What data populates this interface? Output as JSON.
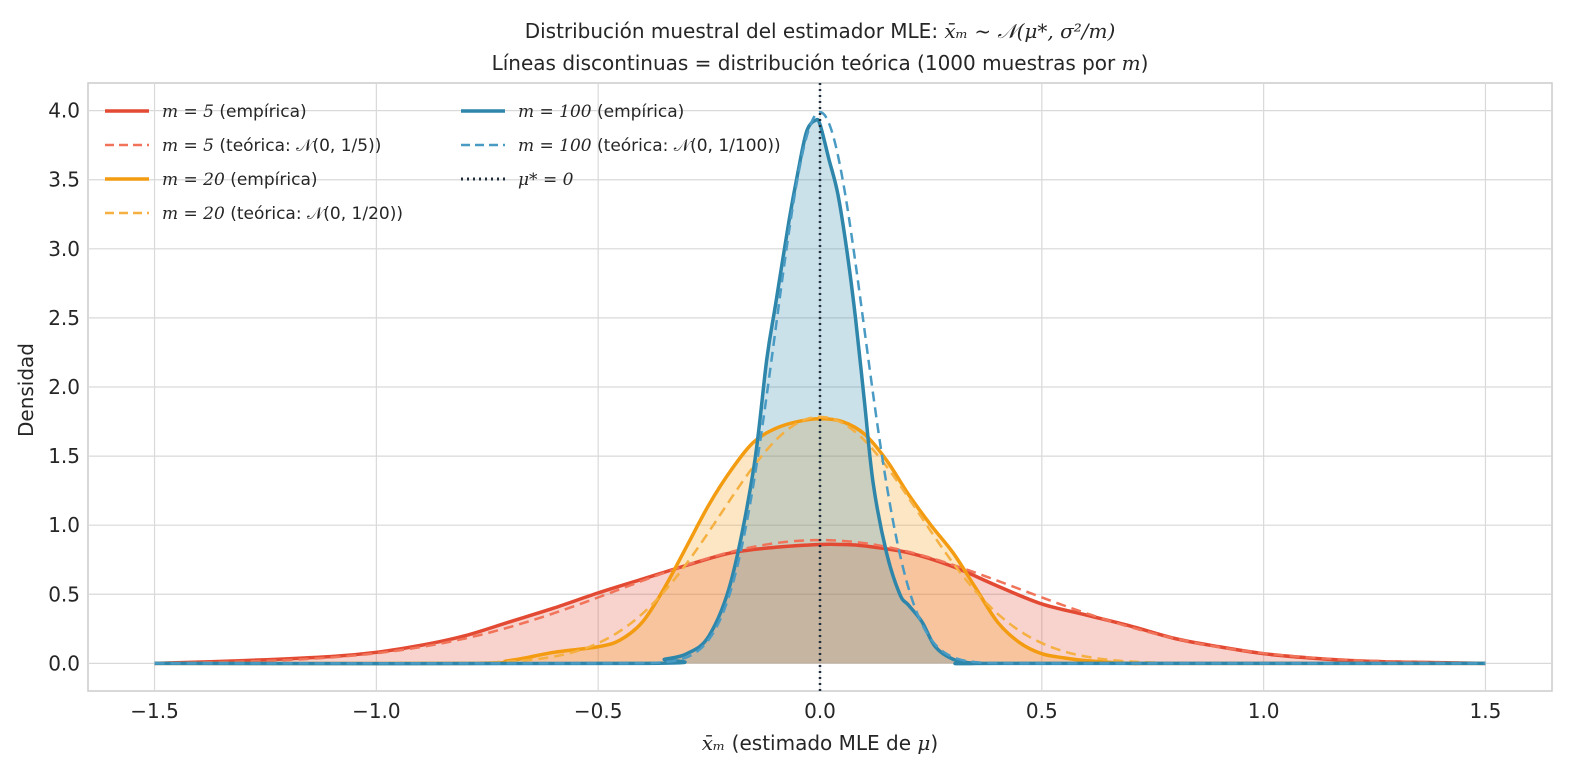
{
  "chart_data": {
    "type": "line",
    "title": {
      "line1_prefix": "Distribución muestral del estimador MLE: ",
      "line1_math": "x̄ₘ ~ 𝒩(μ*, σ²/m)",
      "line2_prefix": "Líneas discontinuas = distribución teórica (1000 muestras por ",
      "line2_math": "m",
      "line2_suffix": ")"
    },
    "xlabel": {
      "math": "x̄ₘ",
      "text": " (estimado MLE de ",
      "math2": "μ",
      "suffix": ")"
    },
    "ylabel": "Densidad",
    "xlim": [
      -1.65,
      1.65
    ],
    "ylim": [
      -0.2,
      4.2
    ],
    "xticks": [
      -1.5,
      -1.0,
      -0.5,
      0.0,
      0.5,
      1.0,
      1.5
    ],
    "xtick_labels": [
      "−1.5",
      "−1.0",
      "−0.5",
      "0.0",
      "0.5",
      "1.0",
      "1.5"
    ],
    "yticks": [
      0.0,
      0.5,
      1.0,
      1.5,
      2.0,
      2.5,
      3.0,
      3.5,
      4.0
    ],
    "ytick_labels": [
      "0.0",
      "0.5",
      "1.0",
      "1.5",
      "2.0",
      "2.5",
      "3.0",
      "3.5",
      "4.0"
    ],
    "grid": true,
    "legend_position": "top-left",
    "colors": {
      "m5": "#e34a33",
      "m5_dash": "#f0735a",
      "m20": "#f39c12",
      "m20_dash": "#f5b041",
      "m100": "#2e86ab",
      "m100_dash": "#4a9bc4",
      "mu": "#1f2d3d"
    },
    "series": [
      {
        "name": "m = 5 (empírica)",
        "legend_math": "m = 5",
        "legend_text": " (empírica)",
        "kind": "empirical",
        "color_key": "m5",
        "fill": true,
        "x": [
          -1.5,
          -1.3,
          -1.1,
          -1.0,
          -0.9,
          -0.8,
          -0.7,
          -0.6,
          -0.5,
          -0.4,
          -0.3,
          -0.2,
          -0.1,
          0.0,
          0.05,
          0.1,
          0.2,
          0.3,
          0.4,
          0.5,
          0.6,
          0.7,
          0.8,
          0.9,
          1.0,
          1.1,
          1.2,
          1.3,
          1.5
        ],
        "y": [
          0.0,
          0.02,
          0.05,
          0.08,
          0.13,
          0.2,
          0.3,
          0.4,
          0.51,
          0.61,
          0.71,
          0.8,
          0.84,
          0.86,
          0.86,
          0.85,
          0.8,
          0.7,
          0.56,
          0.43,
          0.35,
          0.27,
          0.18,
          0.12,
          0.07,
          0.04,
          0.02,
          0.01,
          0.0
        ]
      },
      {
        "name": "m = 5 (teórica: 𝒩(0, 1/5))",
        "legend_math": "m = 5",
        "legend_text": " (teórica: 𝒩(0, 1/5))",
        "kind": "theoretical",
        "color_key": "m5_dash",
        "std": 0.4472
      },
      {
        "name": "m = 20 (empírica)",
        "legend_math": "m = 20",
        "legend_text": " (empírica)",
        "kind": "empirical",
        "color_key": "m20",
        "fill": true,
        "x": [
          -1.5,
          -0.8,
          -0.7,
          -0.6,
          -0.5,
          -0.45,
          -0.4,
          -0.35,
          -0.3,
          -0.25,
          -0.2,
          -0.15,
          -0.1,
          -0.05,
          0.0,
          0.05,
          0.1,
          0.15,
          0.2,
          0.25,
          0.3,
          0.35,
          0.4,
          0.45,
          0.5,
          0.55,
          0.6,
          0.7,
          0.8,
          1.5
        ],
        "y": [
          0.0,
          0.0,
          0.02,
          0.08,
          0.12,
          0.17,
          0.3,
          0.55,
          0.85,
          1.15,
          1.4,
          1.6,
          1.7,
          1.75,
          1.77,
          1.75,
          1.66,
          1.47,
          1.22,
          1.0,
          0.8,
          0.55,
          0.3,
          0.15,
          0.07,
          0.04,
          0.02,
          0.0,
          0.0,
          0.0
        ]
      },
      {
        "name": "m = 20 (teórica: 𝒩(0, 1/20))",
        "legend_math": "m = 20",
        "legend_text": " (teórica: 𝒩(0, 1/20))",
        "kind": "theoretical",
        "color_key": "m20_dash",
        "std": 0.2236
      },
      {
        "name": "m = 100 (empírica)",
        "legend_math": "m = 100",
        "legend_text": " (empírica)",
        "kind": "empirical",
        "color_key": "m100",
        "fill": true,
        "x": [
          -1.5,
          -0.4,
          -0.35,
          -0.3,
          -0.25,
          -0.2,
          -0.15,
          -0.12,
          -0.1,
          -0.07,
          -0.05,
          -0.03,
          -0.01,
          0.0,
          0.02,
          0.04,
          0.06,
          0.08,
          0.1,
          0.12,
          0.15,
          0.18,
          0.2,
          0.23,
          0.26,
          0.3,
          0.35,
          0.4,
          1.5
        ],
        "y": [
          0.0,
          0.0,
          0.03,
          0.07,
          0.2,
          0.6,
          1.4,
          2.2,
          2.6,
          3.2,
          3.55,
          3.85,
          3.93,
          3.9,
          3.65,
          3.4,
          3.0,
          2.5,
          1.9,
          1.3,
          0.8,
          0.5,
          0.42,
          0.3,
          0.12,
          0.03,
          0.0,
          0.0,
          0.0
        ]
      },
      {
        "name": "m = 100 (teórica: 𝒩(0, 1/100))",
        "legend_math": "m = 100",
        "legend_text": " (teórica: 𝒩(0, 1/100))",
        "kind": "theoretical",
        "color_key": "m100_dash",
        "std": 0.1
      },
      {
        "name": "μ* = 0",
        "legend_math": "μ* = 0",
        "legend_text": "",
        "kind": "vline",
        "color_key": "mu",
        "x": 0.0
      }
    ]
  }
}
